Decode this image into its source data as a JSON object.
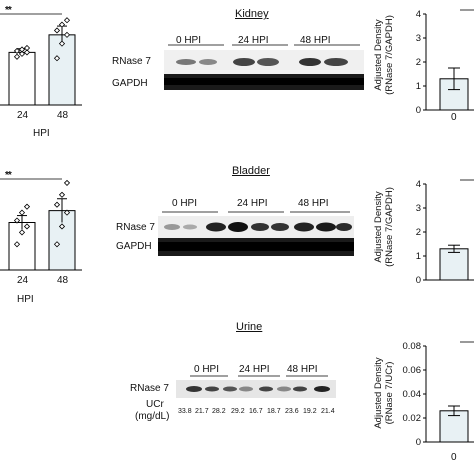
{
  "panels": {
    "kidney": {
      "title": "Kidney",
      "significance": "**",
      "left_x_ticks": [
        "24",
        "48"
      ],
      "blot_lanes": [
        "0 HPI",
        "24 HPI",
        "48 HPI"
      ],
      "blot_rows": [
        "RNase 7",
        "GAPDH"
      ],
      "ylabel_line1": "Adjusted Density",
      "ylabel_line2": "(RNase 7/GAPDH)",
      "right_y_ticks": [
        "0",
        "1",
        "2",
        "3",
        "4"
      ],
      "right_x_ticks": [
        "0"
      ]
    },
    "bladder": {
      "title": "Bladder",
      "significance": "**",
      "left_x_ticks": [
        "24",
        "48"
      ],
      "left_x_label": "HPI",
      "blot_lanes": [
        "0 HPI",
        "24 HPI",
        "48 HPI"
      ],
      "blot_rows": [
        "RNase 7",
        "GAPDH"
      ],
      "ylabel_line1": "Adjusted Density",
      "ylabel_line2": "(RNase 7/GAPDH)",
      "right_y_ticks": [
        "0",
        "1",
        "2",
        "3",
        "4"
      ]
    },
    "urine": {
      "title": "Urine",
      "blot_lanes": [
        "0 HPI",
        "24 HPI",
        "48 HPI"
      ],
      "blot_rows": [
        "RNase 7"
      ],
      "ucr_label_line1": "UCr",
      "ucr_label_line2": "(mg/dL)",
      "ucr_values": [
        "33.8",
        "21.7",
        "28.2",
        "29.2",
        "16.7",
        "18.7",
        "23.6",
        "19.2",
        "21.4"
      ],
      "ylabel_line1": "Adjusted Density",
      "ylabel_line2": "(RNase 7/UCr)",
      "right_y_ticks": [
        "0",
        "0.02",
        "0.04",
        "0.06",
        "0.08"
      ],
      "right_x_ticks": [
        "0"
      ]
    }
  },
  "top_left_xlabel": "HPI",
  "chart_data": [
    {
      "type": "bar",
      "panel": "kidney-left",
      "categories": [
        "24",
        "48"
      ],
      "values": [
        3.6,
        4.8
      ],
      "errors": [
        0.25,
        0.6
      ],
      "points": [
        [
          3.3,
          3.5,
          3.6,
          3.7,
          3.8,
          3.9
        ],
        [
          3.2,
          4.2,
          4.8,
          5.1,
          5.5,
          5.8
        ]
      ],
      "ylim": [
        0,
        6.5
      ]
    },
    {
      "type": "bar",
      "panel": "kidney-right",
      "categories": [
        "0"
      ],
      "values": [
        1.3
      ],
      "errors": [
        0.45
      ],
      "ylim": [
        0,
        4
      ]
    },
    {
      "type": "bar",
      "panel": "bladder-left",
      "categories": [
        "24",
        "48"
      ],
      "values": [
        2.4,
        3.0
      ],
      "errors": [
        0.35,
        0.6
      ],
      "points": [
        [
          1.3,
          1.9,
          2.2,
          2.5,
          2.9,
          3.2
        ],
        [
          1.3,
          2.2,
          2.9,
          3.3,
          3.8,
          4.4
        ]
      ],
      "ylim": [
        0,
        4.8
      ]
    },
    {
      "type": "bar",
      "panel": "bladder-right",
      "categories": [
        "0"
      ],
      "values": [
        1.3
      ],
      "errors": [
        0.15
      ],
      "ylim": [
        0,
        4
      ]
    },
    {
      "type": "bar",
      "panel": "urine-right",
      "categories": [
        "0"
      ],
      "values": [
        0.026
      ],
      "errors": [
        0.004
      ],
      "ylim": [
        0,
        0.08
      ]
    }
  ]
}
